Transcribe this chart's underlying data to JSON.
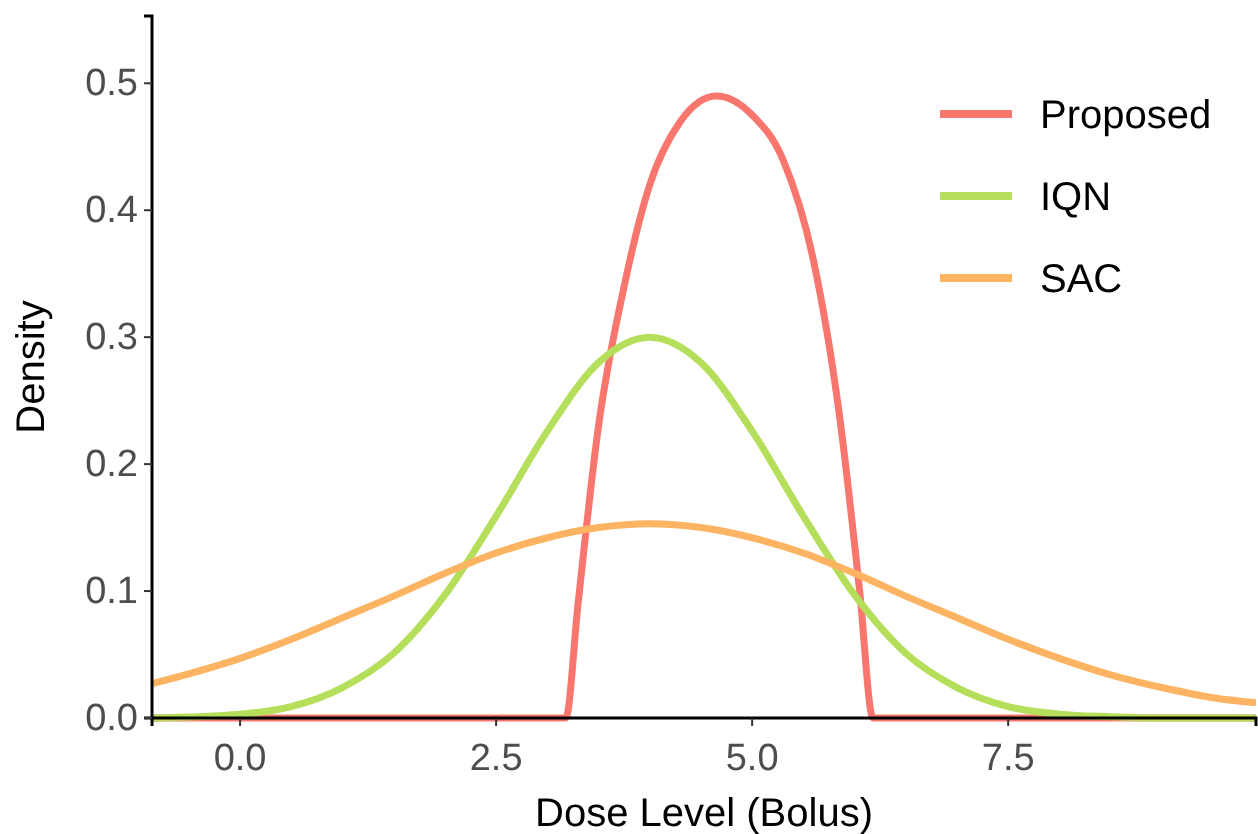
{
  "chart_data": {
    "type": "line",
    "xlabel": "Dose Level (Bolus)",
    "ylabel": "Density",
    "xlim": [
      -0.86,
      9.92
    ],
    "ylim": [
      0,
      0.553
    ],
    "xticks": [
      {
        "value": 0,
        "label": "0.0"
      },
      {
        "value": 2.5,
        "label": "2.5"
      },
      {
        "value": 5,
        "label": "5.0"
      },
      {
        "value": 7.5,
        "label": "7.5"
      }
    ],
    "yticks": [
      {
        "value": 0,
        "label": "0.0"
      },
      {
        "value": 0.1,
        "label": "0.1"
      },
      {
        "value": 0.2,
        "label": "0.2"
      },
      {
        "value": 0.3,
        "label": "0.3"
      },
      {
        "value": 0.4,
        "label": "0.4"
      },
      {
        "value": 0.5,
        "label": "0.5"
      }
    ],
    "grid": false,
    "legend": "top right",
    "marker": "none",
    "line_style": "solid",
    "series": [
      {
        "name": "Proposed",
        "color": "#f8766d",
        "x": [
          -0.86,
          3.18,
          3.3,
          3.5,
          3.75,
          4,
          4.3,
          4.65,
          5,
          5.3,
          5.6,
          5.85,
          6.05,
          6.18,
          9.92
        ],
        "values": [
          0,
          0,
          0.09,
          0.23,
          0.34,
          0.42,
          0.47,
          0.49,
          0.475,
          0.44,
          0.36,
          0.24,
          0.1,
          0,
          0
        ]
      },
      {
        "name": "IQN",
        "color": "#b5de5b",
        "x": [
          -0.86,
          0,
          0.5,
          1,
          1.5,
          2,
          2.5,
          3,
          3.5,
          4,
          4.5,
          5,
          5.5,
          6,
          6.5,
          7,
          7.5,
          8,
          8.5,
          9,
          9.92
        ],
        "values": [
          0,
          0.003,
          0.009,
          0.024,
          0.051,
          0.097,
          0.159,
          0.226,
          0.28,
          0.3,
          0.28,
          0.226,
          0.159,
          0.097,
          0.051,
          0.024,
          0.009,
          0.003,
          0.001,
          0,
          0
        ]
      },
      {
        "name": "SAC",
        "color": "#fdb462",
        "x": [
          -0.86,
          0,
          0.5,
          1,
          1.5,
          2,
          2.5,
          3,
          3.5,
          4,
          4.5,
          5,
          5.5,
          6,
          6.5,
          7,
          7.5,
          8,
          8.5,
          9,
          9.5,
          9.92
        ],
        "values": [
          0.027,
          0.047,
          0.062,
          0.079,
          0.096,
          0.114,
          0.13,
          0.142,
          0.15,
          0.153,
          0.15,
          0.142,
          0.13,
          0.114,
          0.096,
          0.079,
          0.062,
          0.047,
          0.034,
          0.024,
          0.016,
          0.012
        ]
      }
    ]
  }
}
